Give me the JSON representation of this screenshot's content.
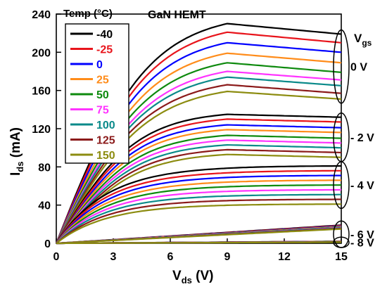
{
  "chart_data": {
    "type": "line",
    "title": "GaN HEMT",
    "xlabel": {
      "main": "V",
      "sub": "ds",
      "unit": " (V)"
    },
    "ylabel": {
      "main": "I",
      "sub": "ds",
      "unit": " (mA)"
    },
    "xlim": [
      0,
      15
    ],
    "ylim": [
      0,
      240
    ],
    "xticks": [
      0,
      3,
      6,
      9,
      12,
      15
    ],
    "yticks": [
      0,
      40,
      80,
      120,
      160,
      200,
      240
    ],
    "legend": {
      "title": "Temp (°C)",
      "placement": "top-left",
      "entries": [
        "-40",
        "-25",
        "0",
        "25",
        "50",
        "75",
        "100",
        "125",
        "150"
      ],
      "colors": [
        "#000000",
        "#e8141b",
        "#0000ff",
        "#ff8c1a",
        "#0e8a0e",
        "#ff33ff",
        "#0a8a8a",
        "#8b1a1a",
        "#8c8c10"
      ]
    },
    "vgs_label": {
      "main": "V",
      "sub": "gs"
    },
    "groups": [
      {
        "label": "0 V",
        "kind": "sat",
        "knee": 4.8,
        "isat": [
          230,
          221,
          210,
          199,
          189,
          180,
          174,
          166,
          159
        ],
        "ifinal": [
          219,
          210,
          200,
          189,
          179,
          171,
          165,
          157,
          151
        ]
      },
      {
        "label": "- 2 V",
        "kind": "sat",
        "knee": 4.2,
        "isat": [
          135,
          130,
          124,
          119,
          113,
          108,
          103,
          98,
          93
        ],
        "ifinal": [
          132,
          127,
          121,
          116,
          110,
          105,
          100,
          95,
          90
        ]
      },
      {
        "label": "- 4 V",
        "kind": "sub",
        "k": 0.38,
        "ifinal": [
          81,
          76,
          71,
          66,
          61,
          56,
          51,
          46,
          41
        ],
        "imid": [
          74,
          70,
          66,
          61,
          56,
          51,
          46,
          41,
          36
        ]
      },
      {
        "label": "- 6 V",
        "kind": "lin",
        "ifinal": [
          19,
          18.5,
          18,
          17.5,
          17,
          16.5,
          16,
          15.5,
          15
        ]
      },
      {
        "label": "- 8 V",
        "kind": "lin",
        "ifinal": [
          2,
          1.9,
          1.8,
          1.7,
          1.6,
          1.5,
          1.4,
          1.3,
          1.2
        ]
      }
    ]
  }
}
